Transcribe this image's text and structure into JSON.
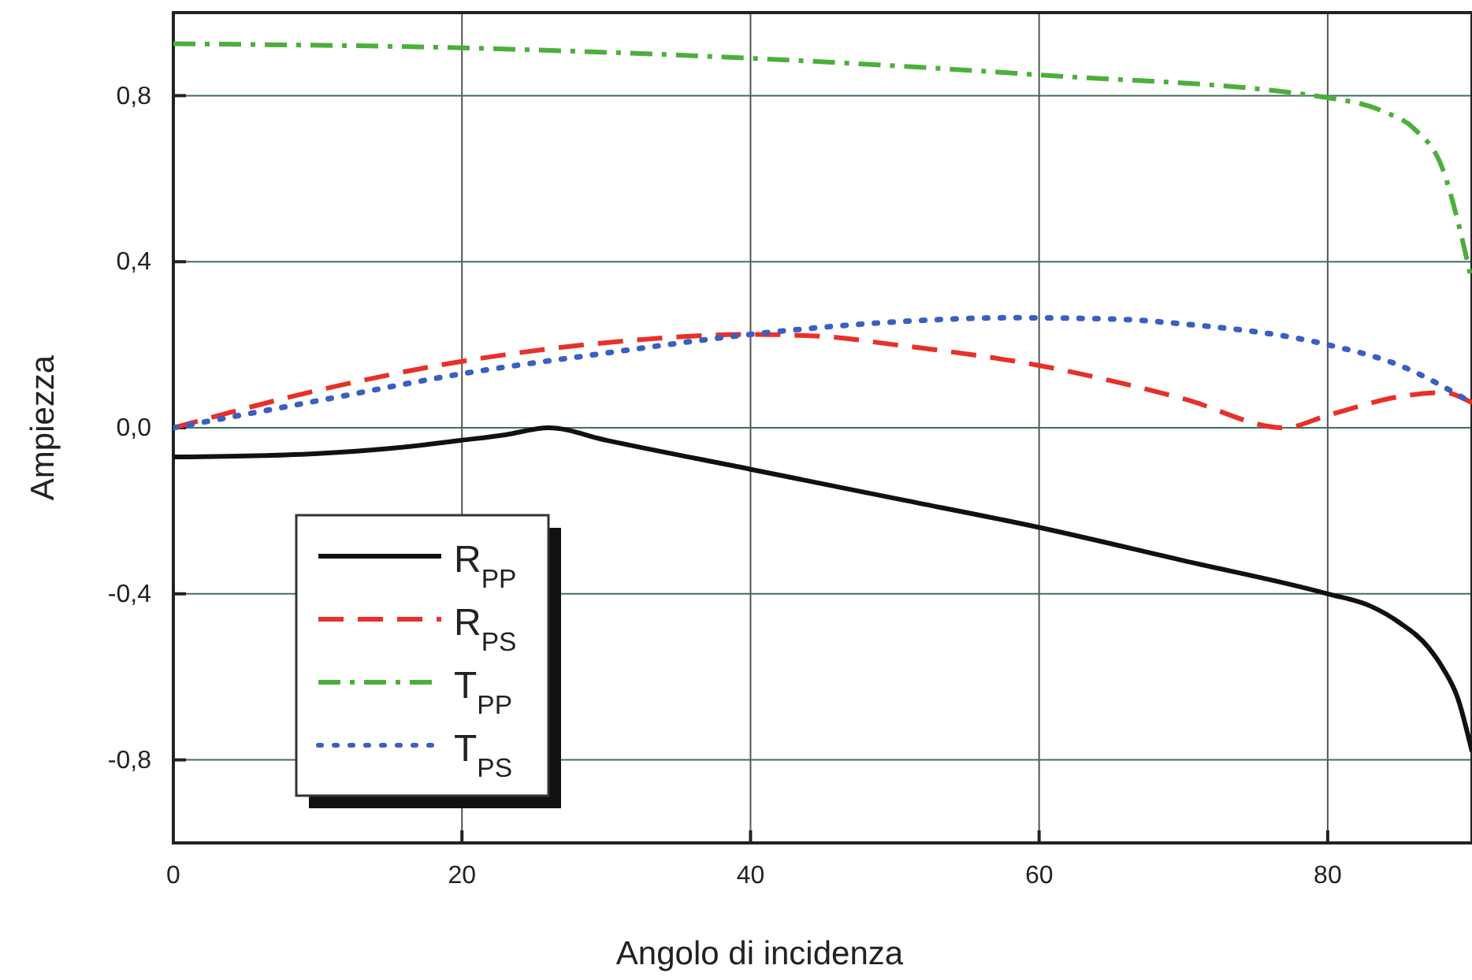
{
  "chart_data": {
    "type": "line",
    "xlabel": "Angolo di incidenza",
    "ylabel": "Ampiezza",
    "xlim": [
      0,
      90
    ],
    "xticks": [
      0,
      20,
      40,
      60,
      80
    ],
    "ylim": [
      -1,
      1
    ],
    "yticks": [
      {
        "value": -0.8,
        "label": "-0,8"
      },
      {
        "value": -0.4,
        "label": "-0,4"
      },
      {
        "value": 0,
        "label": "0,0"
      },
      {
        "value": 0.4,
        "label": "0,4"
      },
      {
        "value": 0.8,
        "label": "0,8"
      }
    ],
    "grid": true,
    "legend": "bottom left",
    "marker": "none",
    "series": [
      {
        "name": "R$_{PP}$",
        "color": "#111111",
        "line_style": "solid",
        "x": [
          0,
          5,
          10,
          15,
          20,
          23,
          26,
          30,
          40,
          50,
          60,
          70,
          80,
          83,
          85,
          87,
          88,
          89,
          90
        ],
        "values": [
          -0.07,
          -0.068,
          -0.062,
          -0.05,
          -0.03,
          -0.017,
          0,
          -0.03,
          -0.1,
          -0.17,
          -0.24,
          -0.32,
          -0.4,
          -0.43,
          -0.47,
          -0.53,
          -0.58,
          -0.65,
          -0.78
        ]
      },
      {
        "name": "R$_{PS}$",
        "color": "#e8302a",
        "line_style": "dashed",
        "x": [
          0,
          10,
          20,
          30,
          40,
          45,
          50,
          60,
          70,
          77,
          80,
          85,
          88,
          90
        ],
        "values": [
          0,
          0.09,
          0.16,
          0.205,
          0.225,
          0.22,
          0.2,
          0.15,
          0.07,
          0,
          0.03,
          0.075,
          0.085,
          0.06
        ]
      },
      {
        "name": "T$_{PP}$",
        "color": "#4caf3c",
        "line_style": "dashdot",
        "x": [
          0,
          20,
          40,
          60,
          80,
          84,
          86,
          88,
          89,
          90
        ],
        "values": [
          0.925,
          0.915,
          0.89,
          0.85,
          0.795,
          0.76,
          0.72,
          0.62,
          0.5,
          0.35
        ]
      },
      {
        "name": "T$_{PS}$",
        "color": "#3a5fc0",
        "line_style": "dotted",
        "x": [
          0,
          10,
          20,
          30,
          40,
          50,
          58,
          65,
          70,
          80,
          85,
          90
        ],
        "values": [
          0,
          0.065,
          0.13,
          0.18,
          0.225,
          0.255,
          0.265,
          0.262,
          0.25,
          0.2,
          0.15,
          0.06
        ]
      }
    ]
  }
}
